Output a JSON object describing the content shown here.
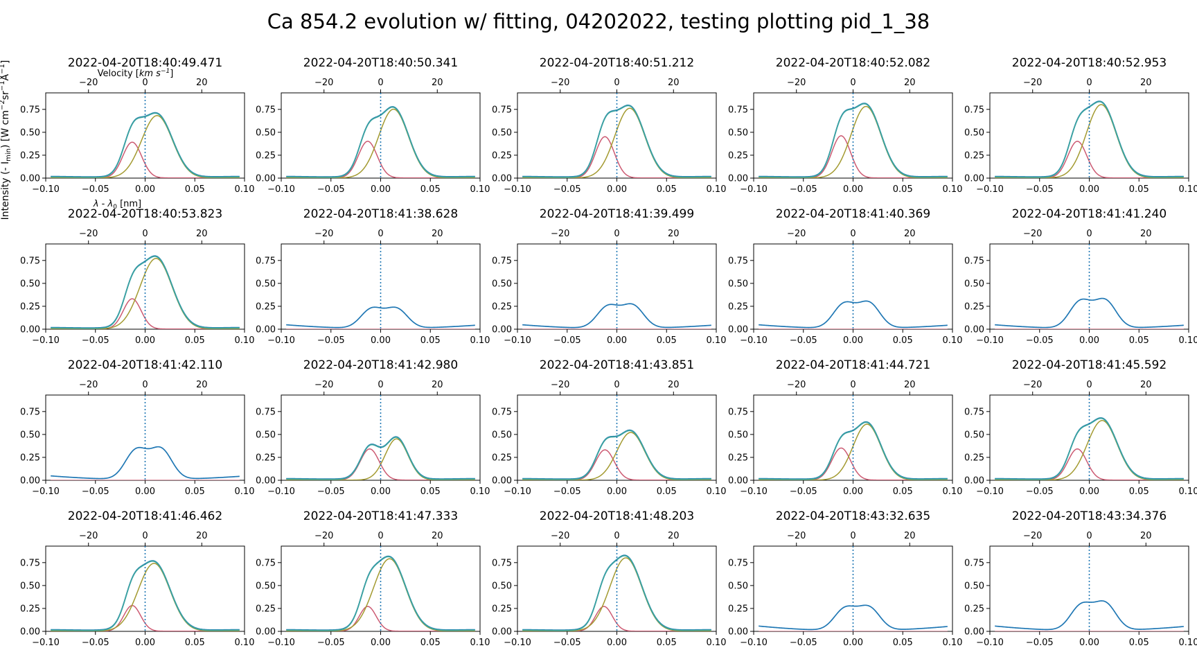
{
  "suptitle": "Ca 854.2 evolution w/ fitting, 04202022, testing plotting pid_1_38",
  "y_axis_label": "Intensity (- I_min) [W cm^-2 sr^-1 Å^-1]",
  "x_axis_label": "λ - λ0 [nm]",
  "top_axis_label": "Velocity [km s^-1]",
  "colors": {
    "observed": "#1f77b4",
    "fit_total": "#3aa2a0",
    "component_a": "#cc5a72",
    "component_b": "#a39a30",
    "zero_line": "#1f77b4"
  },
  "chart_data": {
    "type": "line",
    "layout": "4x5 grid of subplots",
    "xlim": [
      -0.1,
      0.1
    ],
    "ylim": [
      0,
      0.93
    ],
    "x_ticks": [
      "-0.10",
      "-0.05",
      "0.00",
      "0.05",
      "0.10"
    ],
    "y_ticks": [
      "0.00",
      "0.25",
      "0.50",
      "0.75"
    ],
    "top_ticks": [
      "−20",
      "0",
      "20"
    ],
    "top_tick_values_km_s": [
      -20,
      0,
      20
    ],
    "lambda0_nm": 854.2,
    "reference_line_x": 0.0,
    "panels": [
      {
        "title": "2022-04-20T18:40:49.471",
        "fit": true,
        "g1": {
          "a": 0.39,
          "mu": -0.013,
          "s": 0.0095
        },
        "g2": {
          "a": 0.68,
          "mu": 0.012,
          "s": 0.0155
        },
        "bg": 0.012
      },
      {
        "title": "2022-04-20T18:40:50.341",
        "fit": true,
        "g1": {
          "a": 0.4,
          "mu": -0.013,
          "s": 0.0095
        },
        "g2": {
          "a": 0.75,
          "mu": 0.013,
          "s": 0.015
        },
        "bg": 0.012
      },
      {
        "title": "2022-04-20T18:40:51.212",
        "fit": true,
        "g1": {
          "a": 0.45,
          "mu": -0.012,
          "s": 0.0095
        },
        "g2": {
          "a": 0.76,
          "mu": 0.013,
          "s": 0.015
        },
        "bg": 0.012
      },
      {
        "title": "2022-04-20T18:40:52.082",
        "fit": true,
        "g1": {
          "a": 0.46,
          "mu": -0.012,
          "s": 0.0095
        },
        "g2": {
          "a": 0.78,
          "mu": 0.013,
          "s": 0.015
        },
        "bg": 0.012
      },
      {
        "title": "2022-04-20T18:40:52.953",
        "fit": true,
        "g1": {
          "a": 0.4,
          "mu": -0.012,
          "s": 0.0095
        },
        "g2": {
          "a": 0.8,
          "mu": 0.012,
          "s": 0.015
        },
        "bg": 0.012
      },
      {
        "title": "2022-04-20T18:40:53.823",
        "fit": true,
        "g1": {
          "a": 0.33,
          "mu": -0.013,
          "s": 0.009
        },
        "g2": {
          "a": 0.77,
          "mu": 0.011,
          "s": 0.016
        },
        "bg": 0.012
      },
      {
        "title": "2022-04-20T18:41:38.628",
        "fit": false,
        "obs": {
          "peaks": [
            [
              0.24,
              -0.009,
              0.011
            ],
            [
              0.24,
              0.016,
              0.011
            ]
          ],
          "edgeL": 0.04,
          "edgeR": 0.035
        }
      },
      {
        "title": "2022-04-20T18:41:39.499",
        "fit": false,
        "obs": {
          "peaks": [
            [
              0.27,
              -0.009,
              0.011
            ],
            [
              0.28,
              0.016,
              0.011
            ]
          ],
          "edgeL": 0.04,
          "edgeR": 0.035
        }
      },
      {
        "title": "2022-04-20T18:41:40.369",
        "fit": false,
        "obs": {
          "peaks": [
            [
              0.3,
              -0.009,
              0.011
            ],
            [
              0.31,
              0.016,
              0.011
            ]
          ],
          "edgeL": 0.04,
          "edgeR": 0.035
        }
      },
      {
        "title": "2022-04-20T18:41:41.240",
        "fit": false,
        "obs": {
          "peaks": [
            [
              0.33,
              -0.009,
              0.011
            ],
            [
              0.34,
              0.016,
              0.011
            ]
          ],
          "edgeL": 0.04,
          "edgeR": 0.035
        }
      },
      {
        "title": "2022-04-20T18:41:42.110",
        "fit": false,
        "obs": {
          "peaks": [
            [
              0.36,
              -0.009,
              0.011
            ],
            [
              0.37,
              0.016,
              0.011
            ]
          ],
          "edgeL": 0.04,
          "edgeR": 0.035
        }
      },
      {
        "title": "2022-04-20T18:41:42.980",
        "fit": true,
        "g1": {
          "a": 0.34,
          "mu": -0.011,
          "s": 0.0095
        },
        "g2": {
          "a": 0.45,
          "mu": 0.016,
          "s": 0.0115
        },
        "bg": 0.012
      },
      {
        "title": "2022-04-20T18:41:43.851",
        "fit": true,
        "g1": {
          "a": 0.33,
          "mu": -0.012,
          "s": 0.0095
        },
        "g2": {
          "a": 0.52,
          "mu": 0.014,
          "s": 0.014
        },
        "bg": 0.012
      },
      {
        "title": "2022-04-20T18:41:44.721",
        "fit": true,
        "g1": {
          "a": 0.35,
          "mu": -0.012,
          "s": 0.0095
        },
        "g2": {
          "a": 0.61,
          "mu": 0.014,
          "s": 0.014
        },
        "bg": 0.012
      },
      {
        "title": "2022-04-20T18:41:45.592",
        "fit": true,
        "g1": {
          "a": 0.34,
          "mu": -0.012,
          "s": 0.0095
        },
        "g2": {
          "a": 0.65,
          "mu": 0.013,
          "s": 0.015
        },
        "bg": 0.012
      },
      {
        "title": "2022-04-20T18:41:46.462",
        "fit": true,
        "g1": {
          "a": 0.28,
          "mu": -0.013,
          "s": 0.0085
        },
        "g2": {
          "a": 0.74,
          "mu": 0.009,
          "s": 0.016
        },
        "bg": 0.012
      },
      {
        "title": "2022-04-20T18:41:47.333",
        "fit": true,
        "g1": {
          "a": 0.27,
          "mu": -0.013,
          "s": 0.0085
        },
        "g2": {
          "a": 0.79,
          "mu": 0.009,
          "s": 0.016
        },
        "bg": 0.012
      },
      {
        "title": "2022-04-20T18:41:48.203",
        "fit": true,
        "g1": {
          "a": 0.27,
          "mu": -0.013,
          "s": 0.0085
        },
        "g2": {
          "a": 0.8,
          "mu": 0.009,
          "s": 0.016
        },
        "bg": 0.012
      },
      {
        "title": "2022-04-20T18:43:32.635",
        "fit": false,
        "obs": {
          "peaks": [
            [
              0.27,
              -0.008,
              0.011
            ],
            [
              0.28,
              0.016,
              0.011
            ]
          ],
          "edgeL": 0.05,
          "edgeR": 0.045
        }
      },
      {
        "title": "2022-04-20T18:43:34.376",
        "fit": false,
        "obs": {
          "peaks": [
            [
              0.31,
              -0.008,
              0.011
            ],
            [
              0.33,
              0.016,
              0.011
            ]
          ],
          "edgeL": 0.05,
          "edgeR": 0.045
        }
      }
    ]
  }
}
